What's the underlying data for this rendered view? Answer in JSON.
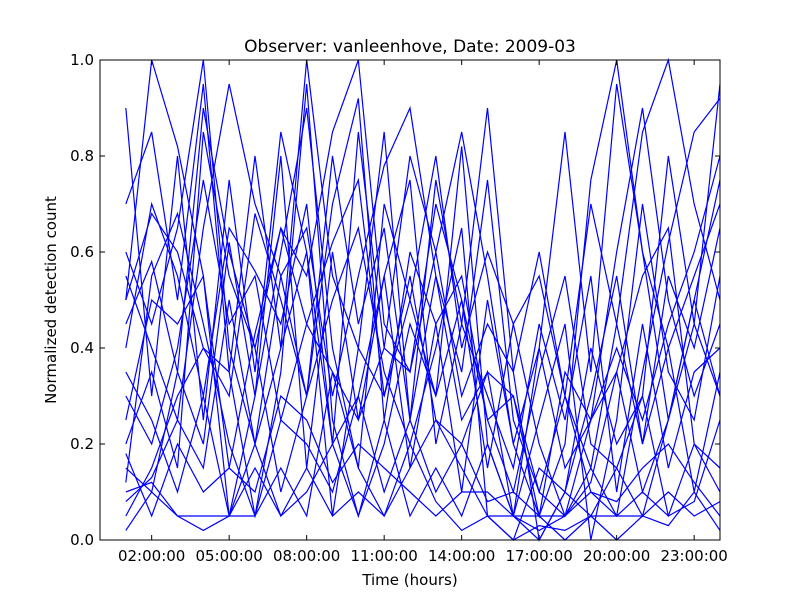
{
  "chart_data": {
    "type": "line",
    "title": "Observer: vanleenhove, Date: 2009-03",
    "xlabel": "Time (hours)",
    "ylabel": "Normalized detection count",
    "xlim": [
      0,
      24
    ],
    "ylim": [
      0,
      1
    ],
    "grid": false,
    "line_color": "#0000ff",
    "x_ticks": [
      {
        "value": 2,
        "label": "02:00:00"
      },
      {
        "value": 5,
        "label": "05:00:00"
      },
      {
        "value": 8,
        "label": "08:00:00"
      },
      {
        "value": 11,
        "label": "11:00:00"
      },
      {
        "value": 14,
        "label": "14:00:00"
      },
      {
        "value": 17,
        "label": "17:00:00"
      },
      {
        "value": 20,
        "label": "20:00:00"
      },
      {
        "value": 23,
        "label": "23:00:00"
      }
    ],
    "y_ticks": [
      {
        "value": 0.0,
        "label": "0.0"
      },
      {
        "value": 0.2,
        "label": "0.2"
      },
      {
        "value": 0.4,
        "label": "0.4"
      },
      {
        "value": 0.6,
        "label": "0.6"
      },
      {
        "value": 0.8,
        "label": "0.8"
      },
      {
        "value": 1.0,
        "label": "1.0"
      }
    ],
    "x": [
      1,
      2,
      3,
      4,
      5,
      6,
      7,
      8,
      9,
      10,
      11,
      12,
      13,
      14,
      15,
      16,
      17,
      18,
      19,
      20,
      21,
      22,
      23,
      24
    ],
    "series": [
      {
        "values": [
          0.5,
          1.0,
          0.82,
          0.55,
          0.05,
          0.3,
          0.6,
          0.9,
          0.4,
          0.15,
          0.7,
          0.5,
          0.3,
          0.82,
          0.2,
          0.05,
          0.0,
          0.1,
          0.4,
          0.2,
          0.3,
          0.8,
          0.45,
          0.95
        ]
      },
      {
        "values": [
          0.6,
          0.45,
          0.65,
          1.0,
          0.4,
          0.2,
          0.55,
          0.3,
          0.7,
          0.92,
          0.25,
          0.6,
          0.45,
          0.1,
          0.5,
          0.2,
          0.05,
          0.35,
          0.25,
          0.6,
          0.9,
          0.5,
          0.3,
          0.45
        ]
      },
      {
        "values": [
          0.45,
          0.58,
          0.35,
          0.9,
          0.6,
          0.4,
          0.65,
          0.55,
          0.85,
          1.0,
          0.45,
          0.35,
          0.7,
          0.5,
          0.25,
          0.1,
          0.35,
          0.55,
          0.2,
          0.15,
          0.05,
          0.25,
          0.5,
          0.3
        ]
      },
      {
        "values": [
          0.3,
          0.2,
          0.4,
          0.75,
          0.45,
          0.55,
          0.25,
          0.45,
          0.62,
          0.75,
          0.3,
          0.5,
          0.8,
          0.4,
          0.6,
          0.45,
          0.2,
          0.05,
          0.12,
          0.35,
          0.55,
          0.65,
          0.2,
          0.1
        ]
      },
      {
        "values": [
          0.55,
          0.4,
          0.25,
          0.65,
          0.95,
          0.7,
          0.55,
          0.65,
          0.3,
          0.55,
          0.78,
          0.9,
          0.55,
          0.25,
          0.35,
          0.3,
          0.05,
          0.2,
          0.75,
          1.0,
          0.6,
          0.4,
          0.55,
          0.7
        ]
      },
      {
        "values": [
          0.12,
          0.55,
          0.68,
          0.45,
          0.2,
          0.05,
          0.35,
          0.95,
          0.25,
          0.05,
          0.2,
          0.45,
          0.3,
          0.5,
          0.15,
          0.45,
          0.55,
          0.3,
          0.1,
          0.05,
          0.35,
          0.62,
          0.85,
          0.92
        ]
      },
      {
        "values": [
          0.2,
          0.35,
          0.15,
          0.85,
          0.55,
          0.4,
          0.1,
          0.3,
          0.8,
          0.45,
          0.65,
          0.25,
          0.55,
          0.35,
          0.75,
          0.25,
          0.1,
          0.05,
          0.25,
          0.4,
          0.25,
          0.45,
          0.6,
          0.8
        ]
      },
      {
        "values": [
          0.4,
          0.7,
          0.55,
          0.3,
          0.65,
          0.56,
          0.45,
          0.7,
          0.2,
          0.3,
          0.55,
          0.75,
          0.2,
          0.45,
          0.3,
          0.15,
          0.45,
          0.25,
          0.55,
          0.1,
          0.45,
          0.15,
          0.35,
          0.4
        ]
      },
      {
        "values": [
          0.15,
          0.1,
          0.35,
          0.2,
          0.62,
          0.3,
          0.8,
          0.15,
          0.6,
          0.25,
          0.4,
          0.35,
          0.6,
          0.3,
          0.45,
          0.35,
          0.0,
          0.1,
          0.3,
          0.55,
          0.2,
          0.4,
          0.1,
          0.35
        ]
      },
      {
        "values": [
          0.5,
          0.68,
          0.6,
          0.4,
          0.3,
          0.68,
          0.5,
          0.3,
          0.5,
          0.65,
          0.35,
          0.2,
          0.4,
          0.65,
          0.05,
          0.05,
          0.25,
          0.45,
          0.0,
          0.25,
          0.7,
          0.35,
          0.25,
          0.55
        ]
      },
      {
        "values": [
          0.08,
          0.13,
          0.25,
          0.15,
          0.5,
          0.2,
          0.4,
          0.6,
          0.05,
          0.4,
          0.3,
          0.55,
          0.25,
          0.2,
          0.35,
          0.05,
          0.4,
          0.15,
          0.25,
          0.35,
          0.1,
          0.25,
          0.45,
          0.3
        ]
      },
      {
        "values": [
          0.25,
          0.5,
          0.45,
          0.55,
          0.15,
          0.43,
          0.65,
          0.45,
          0.35,
          0.25,
          0.55,
          0.15,
          0.45,
          0.55,
          0.25,
          0.3,
          0.1,
          0.3,
          0.15,
          0.45,
          0.2,
          0.55,
          0.4,
          0.65
        ]
      },
      {
        "values": [
          0.35,
          0.25,
          0.1,
          0.3,
          0.05,
          0.05,
          0.25,
          0.2,
          0.1,
          0.3,
          0.1,
          0.25,
          0.1,
          0.2,
          0.08,
          0.1,
          0.05,
          0.05,
          0.15,
          0.05,
          0.1,
          0.05,
          0.2,
          0.15
        ]
      },
      {
        "values": [
          0.05,
          0.15,
          0.3,
          0.4,
          0.35,
          0.05,
          0.15,
          0.05,
          0.35,
          0.15,
          0.05,
          0.15,
          0.25,
          0.15,
          0.05,
          0.0,
          0.15,
          0.1,
          0.05,
          0.15,
          0.3,
          0.05,
          0.08,
          0.25
        ]
      },
      {
        "values": [
          0.1,
          0.12,
          0.05,
          0.05,
          0.05,
          0.2,
          0.05,
          0.1,
          0.2,
          0.05,
          0.25,
          0.05,
          0.15,
          0.05,
          0.2,
          0.05,
          0.05,
          0.0,
          0.05,
          0.0,
          0.05,
          0.1,
          0.05,
          0.08
        ]
      },
      {
        "values": [
          0.18,
          0.05,
          0.2,
          0.1,
          0.15,
          0.1,
          0.3,
          0.25,
          0.12,
          0.2,
          0.15,
          0.1,
          0.05,
          0.1,
          0.1,
          0.05,
          0.02,
          0.05,
          0.1,
          0.08,
          0.15,
          0.2,
          0.12,
          0.05
        ]
      },
      {
        "values": [
          0.02,
          0.1,
          0.05,
          0.02,
          0.05,
          0.15,
          0.05,
          0.15,
          0.05,
          0.1,
          0.05,
          0.2,
          0.08,
          0.02,
          0.05,
          0.0,
          0.03,
          0.02,
          0.05,
          0.05,
          0.05,
          0.03,
          0.1,
          0.02
        ]
      },
      {
        "values": [
          0.9,
          0.3,
          0.8,
          0.25,
          0.75,
          0.35,
          0.85,
          0.6,
          0.2,
          0.85,
          0.4,
          0.8,
          0.6,
          0.85,
          0.55,
          0.2,
          0.4,
          0.85,
          0.35,
          0.95,
          0.6,
          0.25,
          0.5,
          0.75
        ]
      },
      {
        "values": [
          0.7,
          0.85,
          0.5,
          0.95,
          0.35,
          0.8,
          0.4,
          1.0,
          0.55,
          0.4,
          0.85,
          0.25,
          0.75,
          0.45,
          0.9,
          0.35,
          0.6,
          0.3,
          0.7,
          0.45,
          0.85,
          1.0,
          0.7,
          0.5
        ]
      }
    ]
  }
}
